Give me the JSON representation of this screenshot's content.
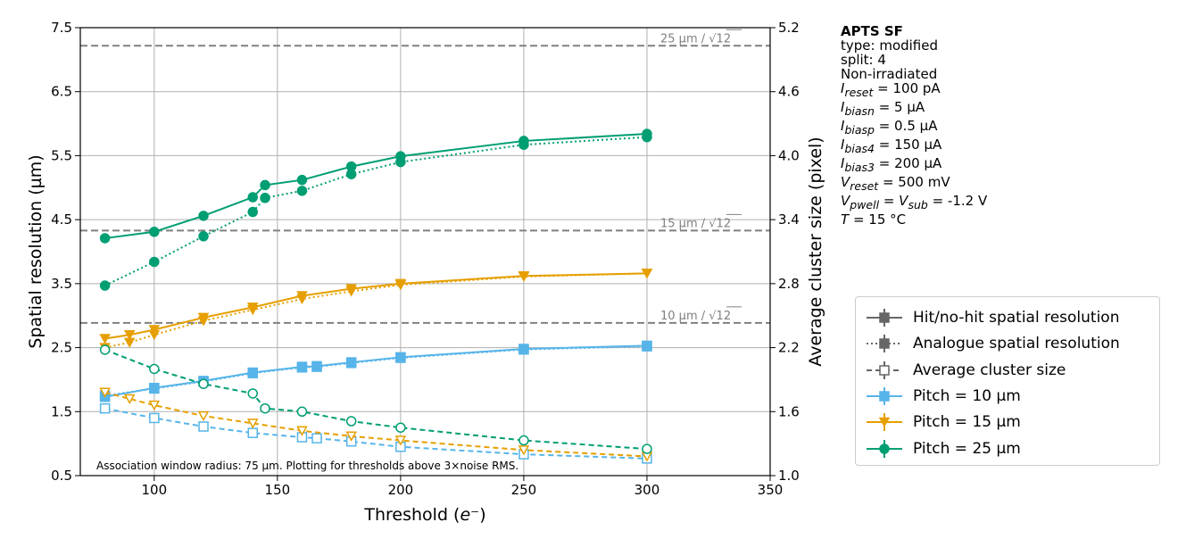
{
  "chart_data": {
    "type": "line",
    "xlabel": "Threshold (e⁻)",
    "ylabel": "Spatial resolution (µm)",
    "y2label": "Average cluster size (pixel)",
    "xlim": [
      70,
      350
    ],
    "ylim": [
      0.5,
      7.5
    ],
    "y2lim": [
      1.0,
      5.2
    ],
    "grid": true,
    "x_ticks": [
      "100",
      "150",
      "200",
      "250",
      "300",
      "350"
    ],
    "y_ticks": [
      "0.5",
      "1.5",
      "2.5",
      "3.5",
      "4.5",
      "5.5",
      "6.5",
      "7.5"
    ],
    "y2_ticks": [
      "1.0",
      "1.6",
      "2.2",
      "2.8",
      "3.4",
      "4.0",
      "4.6",
      "5.2"
    ],
    "reference_lines": [
      {
        "label_text": "25 µm / ",
        "root_text": "12",
        "value": 7.217
      },
      {
        "label_text": "15 µm / ",
        "root_text": "12",
        "value": 4.33
      },
      {
        "label_text": "10 µm / ",
        "root_text": "12",
        "value": 2.887
      }
    ],
    "series": [
      {
        "name": "Pitch = 10 µm",
        "pitch": "10",
        "color": "#56b4e9",
        "marker": "square",
        "hit_nohit": {
          "x": [
            80,
            100,
            120,
            140,
            160,
            166,
            180,
            200,
            250,
            300
          ],
          "y": [
            1.73,
            1.87,
            1.98,
            2.11,
            2.2,
            2.21,
            2.27,
            2.35,
            2.48,
            2.53
          ]
        },
        "analogue": {
          "x": [
            80,
            100,
            120,
            140,
            160,
            166,
            180,
            200,
            250,
            300
          ],
          "y": [
            1.75,
            1.86,
            1.97,
            2.1,
            2.19,
            2.2,
            2.26,
            2.34,
            2.47,
            2.52
          ]
        },
        "cluster_size": {
          "x": [
            80,
            100,
            120,
            140,
            160,
            166,
            180,
            200,
            250,
            300
          ],
          "y": [
            1.63,
            1.54,
            1.46,
            1.4,
            1.36,
            1.35,
            1.32,
            1.27,
            1.2,
            1.16
          ]
        }
      },
      {
        "name": "Pitch = 15 µm",
        "pitch": "15",
        "color": "#e69f00",
        "marker": "triangle-down",
        "hit_nohit": {
          "x": [
            80,
            90,
            100,
            120,
            140,
            160,
            180,
            200,
            250,
            300
          ],
          "y": [
            2.64,
            2.7,
            2.78,
            2.97,
            3.13,
            3.31,
            3.42,
            3.5,
            3.62,
            3.66
          ]
        },
        "analogue": {
          "x": [
            80,
            90,
            100,
            120,
            140,
            160,
            180,
            200,
            250,
            300
          ],
          "y": [
            2.5,
            2.58,
            2.7,
            2.92,
            3.09,
            3.26,
            3.38,
            3.48,
            3.61,
            3.66
          ]
        },
        "cluster_size": {
          "x": [
            80,
            90,
            100,
            120,
            140,
            160,
            180,
            200,
            250,
            300
          ],
          "y": [
            1.78,
            1.72,
            1.66,
            1.56,
            1.49,
            1.42,
            1.37,
            1.33,
            1.24,
            1.18
          ]
        }
      },
      {
        "name": "Pitch = 25 µm",
        "pitch": "25",
        "color": "#009e73",
        "marker": "circle",
        "hit_nohit": {
          "x": [
            80,
            100,
            120,
            140,
            145,
            160,
            180,
            200,
            250,
            300
          ],
          "y": [
            4.21,
            4.31,
            4.56,
            4.85,
            5.04,
            5.12,
            5.33,
            5.49,
            5.73,
            5.84
          ]
        },
        "analogue": {
          "x": [
            80,
            100,
            120,
            140,
            145,
            160,
            180,
            200,
            250,
            300
          ],
          "y": [
            3.47,
            3.84,
            4.24,
            4.62,
            4.84,
            4.95,
            5.21,
            5.4,
            5.67,
            5.79
          ]
        },
        "cluster_size": {
          "x": [
            80,
            100,
            120,
            140,
            145,
            160,
            180,
            200,
            250,
            300
          ],
          "y": [
            2.18,
            2.0,
            1.86,
            1.77,
            1.63,
            1.6,
            1.51,
            1.45,
            1.33,
            1.25
          ]
        }
      }
    ]
  },
  "legend": {
    "items": [
      {
        "label": "Hit/no-hit spatial resolution",
        "style": "solid",
        "marker": "filled-square",
        "color": "#666666"
      },
      {
        "label": "Analogue spatial resolution",
        "style": "dotted",
        "marker": "filled-square",
        "color": "#666666"
      },
      {
        "label": "Average cluster size",
        "style": "dashed",
        "marker": "open-square",
        "color": "#666666"
      },
      {
        "label": "Pitch = 10 µm",
        "style": "solid",
        "marker": "square",
        "color": "#56b4e9"
      },
      {
        "label": "Pitch = 15 µm",
        "style": "solid",
        "marker": "triangle-down",
        "color": "#e69f00"
      },
      {
        "label": "Pitch = 25 µm",
        "style": "solid",
        "marker": "circle",
        "color": "#009e73"
      }
    ]
  },
  "info": {
    "title": "APTS SF",
    "type_line": "type: modified",
    "split_line": "split:  4",
    "irradiation": "Non-irradiated",
    "params": [
      {
        "symbol": "I",
        "sub": "reset",
        "value": " = 100 pA"
      },
      {
        "symbol": "I",
        "sub": "biasn",
        "value": " = 5 µA"
      },
      {
        "symbol": "I",
        "sub": "biasp",
        "value": " = 0.5 µA"
      },
      {
        "symbol": "I",
        "sub": "bias4",
        "value": " = 150 µA"
      },
      {
        "symbol": "I",
        "sub": "bias3",
        "value": " = 200 µA"
      },
      {
        "symbol": "V",
        "sub": "reset",
        "value": " = 500 mV"
      }
    ],
    "vpwell": {
      "symbol1": "V",
      "sub1": "pwell",
      "middle": " = ",
      "symbol2": "V",
      "sub2": "sub",
      "value": " = -1.2 V"
    },
    "temperature": {
      "symbol": "T",
      "value": " = 15 °C"
    }
  },
  "note": "Association window radius: 75 µm. Plotting for thresholds above 3×noise RMS."
}
